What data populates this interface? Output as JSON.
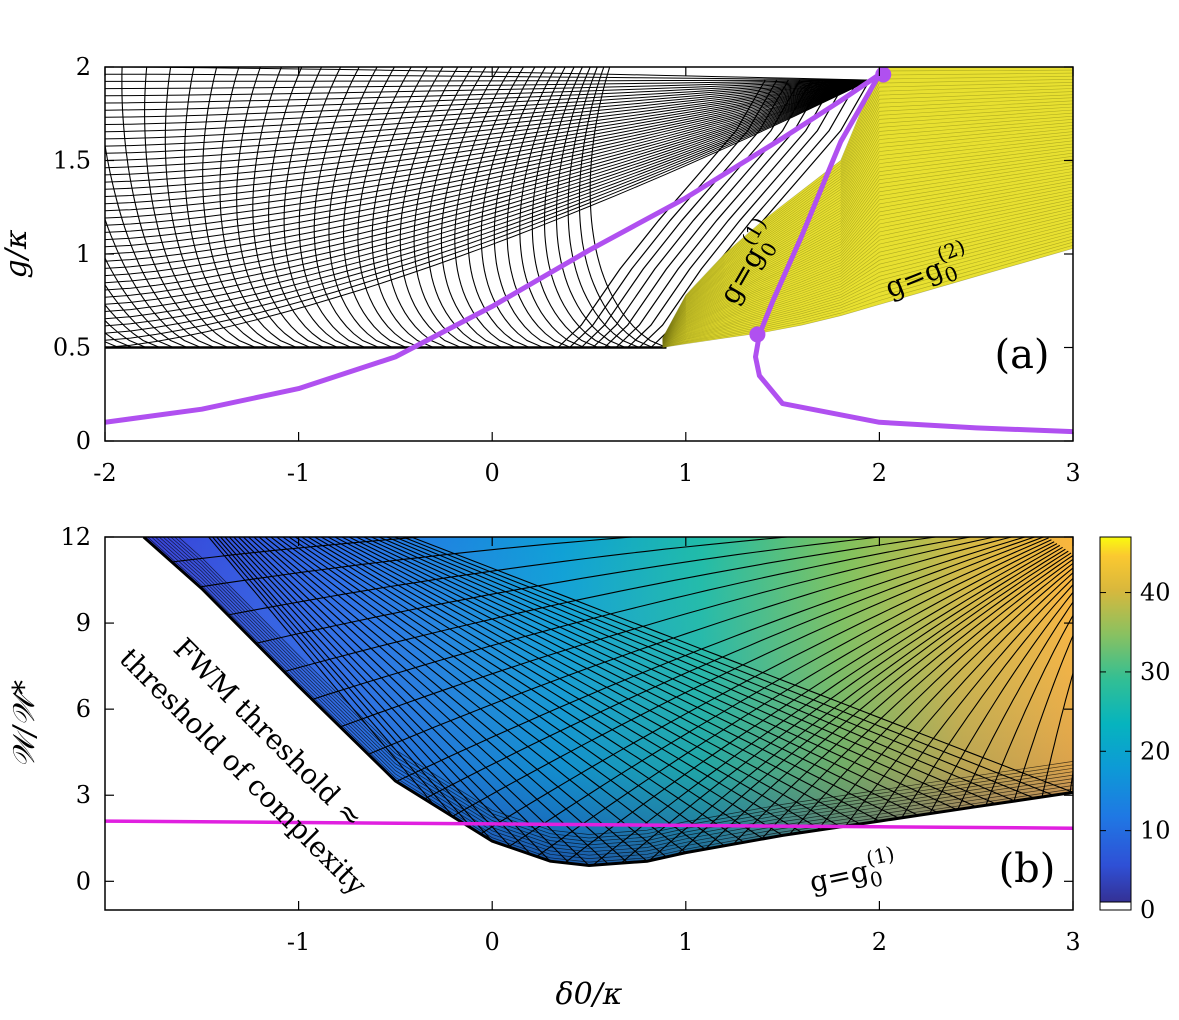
{
  "chart_data": [
    {
      "panel": "a",
      "type": "line",
      "panel_label": "(a)",
      "ylabel": "g/κ",
      "xlabel": "",
      "xlim": [
        -2,
        3
      ],
      "ylim": [
        0,
        2
      ],
      "xticks": [
        "-2",
        "-1",
        "0",
        "1",
        "2",
        "3"
      ],
      "yticks": [
        "0",
        "0.5",
        "1",
        "1.5",
        "2"
      ],
      "regions": [
        {
          "name": "g=g0(1)",
          "fill": "#e8e030",
          "x": [
            0.88,
            1.0,
            1.2,
            1.4,
            1.6,
            1.8,
            2.0,
            2.2,
            2.4,
            2.6,
            2.8,
            3.0
          ],
          "y_upper": [
            0.55,
            0.78,
            1.0,
            1.18,
            1.34,
            1.5,
            2.0,
            2.0,
            2.0,
            2.0,
            2.0,
            2.0
          ],
          "y_lower": [
            0.5,
            0.52,
            0.55,
            0.58,
            0.62,
            0.67,
            0.73,
            0.79,
            0.85,
            0.91,
            0.97,
            1.03
          ]
        }
      ],
      "annotations": [
        {
          "text": "g=g",
          "sup": "(1)",
          "sub": "0"
        },
        {
          "text": "g=g",
          "sup": "(2)",
          "sub": "0"
        }
      ],
      "series": [
        {
          "color": "#b050f0",
          "x": [
            -2.0,
            -1.5,
            -1.0,
            -0.5,
            0.0,
            0.5,
            1.0,
            1.5,
            1.8,
            2.0
          ],
          "y": [
            0.1,
            0.17,
            0.28,
            0.45,
            0.72,
            1.02,
            1.3,
            1.62,
            1.82,
            1.96
          ]
        },
        {
          "color": "#b050f0",
          "x": [
            2.0,
            1.8,
            1.6,
            1.45,
            1.38,
            1.36,
            1.38,
            1.5,
            2.0,
            2.5,
            3.0
          ],
          "y": [
            1.96,
            1.6,
            1.1,
            0.75,
            0.57,
            0.45,
            0.35,
            0.2,
            0.1,
            0.07,
            0.05
          ]
        }
      ],
      "points": [
        {
          "x": 2.02,
          "y": 1.96
        },
        {
          "x": 1.37,
          "y": 0.57
        }
      ]
    },
    {
      "panel": "b",
      "type": "heatmap",
      "panel_label": "(b)",
      "ylabel": "𝒲/𝒲*",
      "xlabel": "δ0/κ",
      "xlim": [
        -2,
        3
      ],
      "ylim": [
        -1,
        12
      ],
      "xticks": [
        "-1",
        "0",
        "1",
        "2",
        "3"
      ],
      "yticks": [
        "0",
        "3",
        "6",
        "9",
        "12"
      ],
      "colorbar": {
        "min": 0,
        "max": 47,
        "ticks": [
          "0",
          "10",
          "20",
          "30",
          "40"
        ],
        "colormap": "parula"
      },
      "surface_boundary": {
        "x": [
          -1.8,
          -1.5,
          -1.0,
          -0.5,
          0.0,
          0.3,
          0.5,
          0.8,
          1.0,
          1.5,
          2.0,
          2.5,
          3.0
        ],
        "y": [
          12.0,
          10.2,
          6.8,
          3.5,
          1.4,
          0.7,
          0.55,
          0.7,
          1.0,
          1.6,
          2.1,
          2.6,
          3.1
        ]
      },
      "series": [
        {
          "color": "#e020e0",
          "x": [
            -2.0,
            -1.0,
            0.0,
            1.0,
            2.0,
            3.0
          ],
          "y": [
            2.1,
            2.05,
            2.0,
            1.95,
            1.9,
            1.85
          ]
        }
      ],
      "annotations": [
        {
          "text": "FWM threshold ≈"
        },
        {
          "text": "threshold of complexity"
        },
        {
          "text": "g=g",
          "sup": "(1)",
          "sub": "0"
        }
      ]
    }
  ]
}
